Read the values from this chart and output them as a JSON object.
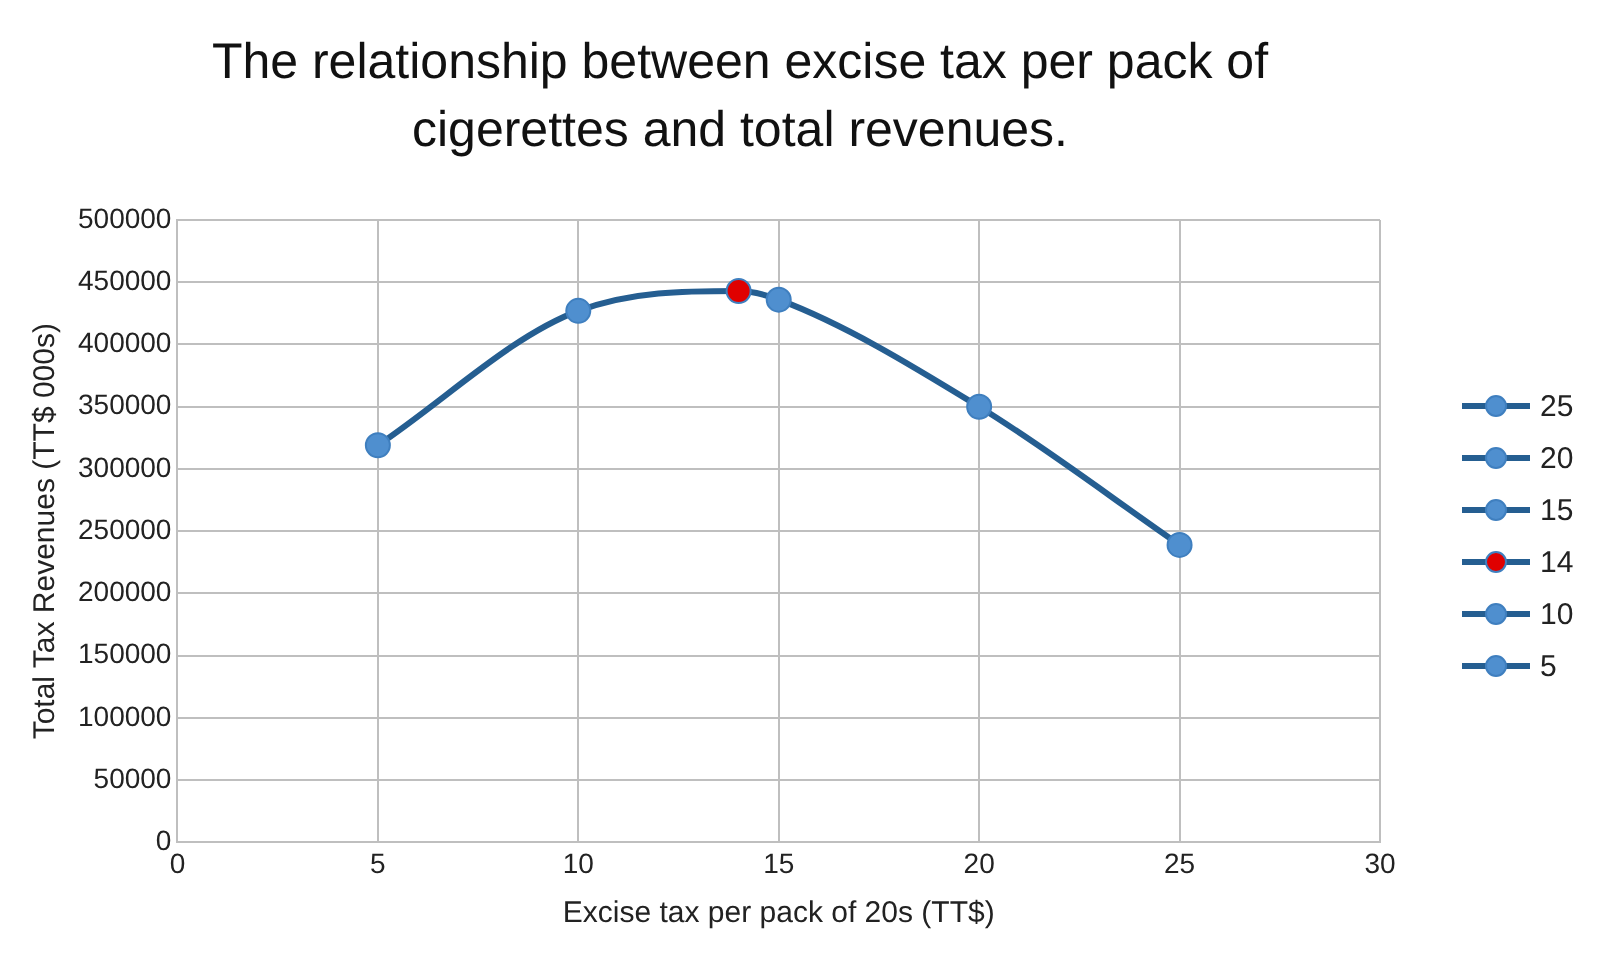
{
  "chart_data": {
    "type": "scatter",
    "title": "The relationship between excise tax per pack of cigerettes and total revenues.",
    "xlabel": "Excise tax per pack of 20s (TT$)",
    "ylabel": "Total Tax Revenues (TT$ 000s)",
    "xlim": [
      0,
      30
    ],
    "xticks": [
      0,
      5,
      10,
      15,
      20,
      25,
      30
    ],
    "ylim": [
      0,
      500000
    ],
    "yticks": [
      0,
      50000,
      100000,
      150000,
      200000,
      250000,
      300000,
      350000,
      400000,
      450000,
      500000
    ],
    "grid": true,
    "legend": "right",
    "marker": "circle",
    "series": [
      {
        "type": "line",
        "color": "#255e91",
        "x": [
          5,
          10,
          14,
          15,
          20,
          25
        ],
        "values": [
          319000,
          427000,
          443000,
          436000,
          350000,
          239000
        ],
        "marker": "none",
        "line_style": "solid"
      },
      {
        "name": "5",
        "color": "#4f8fcf",
        "x": [
          5
        ],
        "values": [
          319000
        ]
      },
      {
        "name": "10",
        "color": "#4f8fcf",
        "x": [
          10
        ],
        "values": [
          427000
        ]
      },
      {
        "name": "14",
        "color": "#e00000",
        "x": [
          14
        ],
        "values": [
          443000
        ]
      },
      {
        "name": "15",
        "color": "#4f8fcf",
        "x": [
          15
        ],
        "values": [
          436000
        ]
      },
      {
        "name": "20",
        "color": "#4f8fcf",
        "x": [
          20
        ],
        "values": [
          350000
        ]
      },
      {
        "name": "25",
        "color": "#4f8fcf",
        "x": [
          25
        ],
        "values": [
          239000
        ]
      }
    ]
  }
}
